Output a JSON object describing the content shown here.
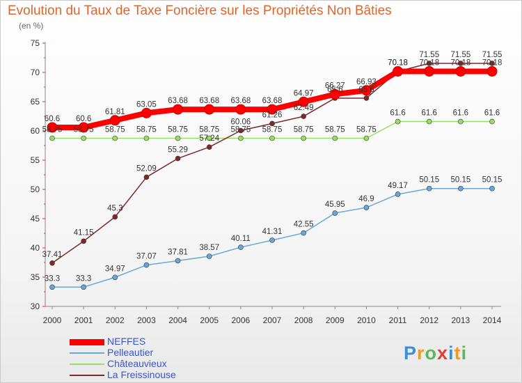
{
  "colors": {
    "title": "#e0642c",
    "axis": "#888888",
    "grid": "#e2e2e2",
    "legend_text": "#3a55c7"
  },
  "chart_data": {
    "type": "line",
    "title": "Evolution du Taux de Taxe Foncière sur les Propriétés Non Bâties",
    "ylabel": "(en %)",
    "xlabel": "",
    "ylim": [
      30,
      75
    ],
    "yticks": [
      30,
      35,
      40,
      45,
      50,
      55,
      60,
      65,
      70,
      75
    ],
    "grid": false,
    "legend_position": "bottom-left",
    "categories": [
      "2000",
      "2001",
      "2002",
      "2003",
      "2004",
      "2005",
      "2006",
      "2007",
      "2008",
      "2009",
      "2010",
      "2011",
      "2012",
      "2013",
      "2014"
    ],
    "series": [
      {
        "name": "NEFFES",
        "color": "#ff0000",
        "width": 8,
        "marker": 7,
        "values": [
          60.6,
          60.6,
          61.81,
          63.05,
          63.68,
          63.68,
          63.68,
          63.68,
          64.97,
          66.27,
          66.93,
          70.18,
          70.18,
          70.18,
          70.18
        ],
        "labels": [
          "60.6",
          "60.6",
          "61.81",
          "63.05",
          "63.68",
          "63.68",
          "63.68",
          "63.68",
          "64.97",
          "66.27",
          "66.93",
          "70.18",
          "70.18",
          "70.18",
          "70.18"
        ]
      },
      {
        "name": "Pelleautier",
        "color": "#6aa6d6",
        "width": 1.5,
        "marker": 3.5,
        "values": [
          33.3,
          33.3,
          34.97,
          37.07,
          37.81,
          38.57,
          40.11,
          41.31,
          42.55,
          45.95,
          46.9,
          49.17,
          50.15,
          50.15,
          50.15
        ],
        "labels": [
          "33.3",
          "33.3",
          "34.97",
          "37.07",
          "37.81",
          "38.57",
          "40.11",
          "41.31",
          "42.55",
          "45.95",
          "46.9",
          "49.17",
          "50.15",
          "50.15",
          "50.15"
        ]
      },
      {
        "name": "Châteauvieux",
        "color": "#99dd66",
        "width": 1.5,
        "marker": 3.5,
        "values": [
          58.75,
          58.75,
          58.75,
          58.75,
          58.75,
          58.75,
          58.75,
          58.75,
          58.75,
          58.75,
          58.75,
          61.6,
          61.6,
          61.6,
          61.6
        ],
        "labels": [
          "58.75",
          "58.75",
          "58.75",
          "58.75",
          "58.75",
          "58.75",
          "58.75",
          "58.75",
          "58.75",
          "58.75",
          "58.75",
          "61.6",
          "61.6",
          "61.6",
          "61.6"
        ]
      },
      {
        "name": "La Freissinouse",
        "color": "#7a2a2a",
        "width": 1.5,
        "marker": 3.5,
        "values": [
          37.41,
          41.15,
          45.3,
          52.09,
          55.29,
          57.24,
          60.06,
          61.26,
          62.49,
          65.6,
          65.6,
          70.18,
          71.55,
          71.55,
          71.55
        ],
        "labels": [
          "37.41",
          "41.15",
          "45.3",
          "52.09",
          "55.29",
          "57.24",
          "60.06",
          "61.26",
          "62.49",
          "65.6",
          "65.6",
          "70.18",
          "71.55",
          "71.55",
          "71.55"
        ]
      }
    ]
  },
  "logo": {
    "text": "Proxiti",
    "letters": [
      "P",
      "r",
      "o",
      "x",
      "i",
      "t",
      "i"
    ],
    "colors": [
      "#3b8fd8",
      "#f29a1b",
      "#5cb85c",
      "#e23b3b",
      "#3b8fd8",
      "#f29a1b",
      "#5cb85c"
    ]
  }
}
